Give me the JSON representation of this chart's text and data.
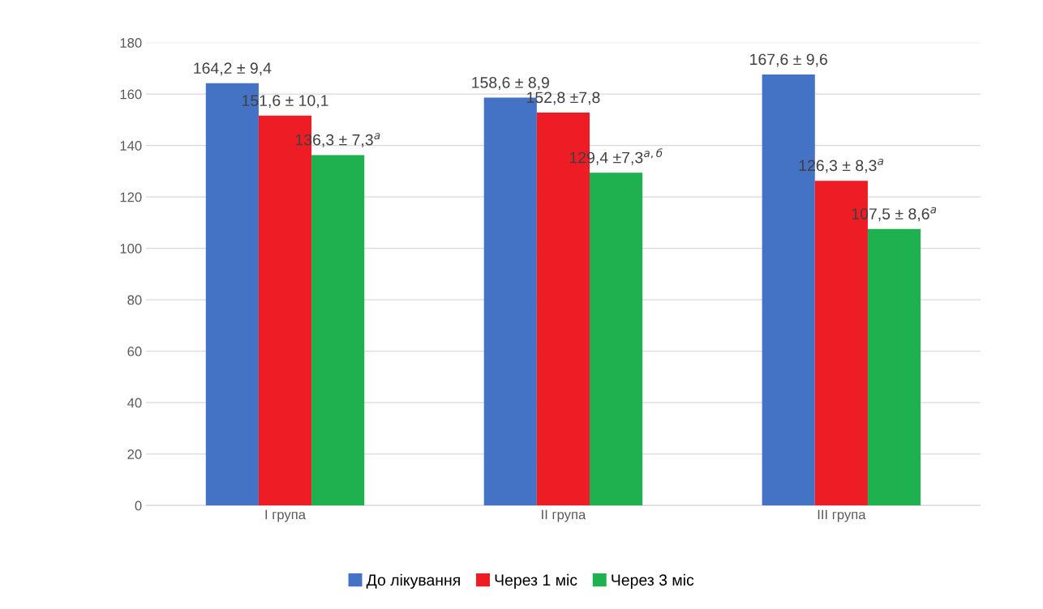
{
  "chart_data": {
    "type": "bar",
    "categories": [
      "I група",
      "II група",
      "III група"
    ],
    "series": [
      {
        "name": "До лікування",
        "color": "#4472c4",
        "values": [
          164.2,
          158.6,
          167.6
        ],
        "value_labels": [
          "164,2 ± 9,4",
          "158,6 ± 8,9",
          "167,6 ± 9,6"
        ]
      },
      {
        "name": "Через 1 міс",
        "color": "#ee1c25",
        "values": [
          151.6,
          152.8,
          126.3
        ],
        "value_labels": [
          "151,6 ± 10,1",
          "152,8 ±7,8",
          "126,3 ± 8,3$^{а}$"
        ]
      },
      {
        "name": "Через 3 міс",
        "color": "#1fb14f",
        "values": [
          136.3,
          129.4,
          107.5
        ],
        "value_labels": [
          "136,3 ± 7,3$^{а}$",
          "129,4 ±7,3$^{а,б}$",
          "107,5 ± 8,6$^{а}$"
        ]
      }
    ],
    "ylim": [
      0,
      180
    ],
    "yticks": [
      0,
      20,
      40,
      60,
      80,
      100,
      120,
      140,
      160,
      180
    ],
    "grid": "y",
    "legend": "bottom"
  }
}
